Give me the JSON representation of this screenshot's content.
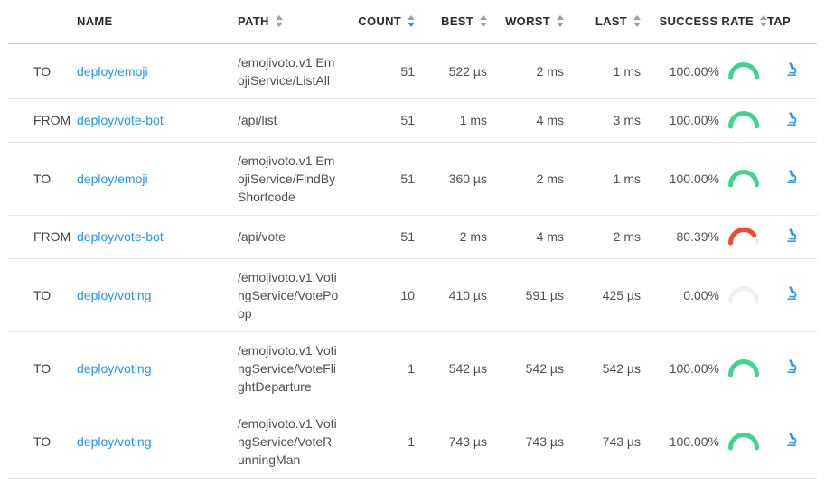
{
  "colors": {
    "link_blue": "#2196f3",
    "sort_active_blue": "#2196f3",
    "sort_inactive_gray": "#9e9e9e",
    "gauge_green": "#3dd58d",
    "gauge_red": "#ea4e2c",
    "gauge_track": "#f1f1f1",
    "header_text": "#2b2b2b",
    "body_text": "#4f4f4f",
    "divider": "#e3e3e3"
  },
  "icons": {
    "tap": "microscope-icon",
    "sort": "sort-arrows-icon"
  },
  "sort_state": {
    "active_column": "COUNT",
    "direction": "desc"
  },
  "table": {
    "columns": [
      {
        "key": "direction",
        "label": "",
        "sortable": false,
        "align": "left"
      },
      {
        "key": "name",
        "label": "NAME",
        "sortable": false,
        "align": "left"
      },
      {
        "key": "path",
        "label": "PATH",
        "sortable": true,
        "align": "left"
      },
      {
        "key": "count",
        "label": "COUNT",
        "sortable": true,
        "align": "right",
        "sorted": "desc"
      },
      {
        "key": "best",
        "label": "BEST",
        "sortable": true,
        "align": "right"
      },
      {
        "key": "worst",
        "label": "WORST",
        "sortable": true,
        "align": "right"
      },
      {
        "key": "last",
        "label": "LAST",
        "sortable": true,
        "align": "right"
      },
      {
        "key": "success_rate",
        "label": "SUCCESS RATE",
        "sortable": true,
        "align": "right"
      },
      {
        "key": "tap",
        "label": "TAP",
        "sortable": false,
        "align": "left"
      }
    ],
    "rows": [
      {
        "direction": "TO",
        "name": "deploy/emoji",
        "path": "/emojivoto.v1.EmojiService/ListAll",
        "count": "51",
        "best": "522 µs",
        "worst": "2 ms",
        "last": "1 ms",
        "success_rate": "100.00%",
        "success_value": 100,
        "gauge_color": "green"
      },
      {
        "direction": "FROM",
        "name": "deploy/vote-bot",
        "path": "/api/list",
        "count": "51",
        "best": "1 ms",
        "worst": "4 ms",
        "last": "3 ms",
        "success_rate": "100.00%",
        "success_value": 100,
        "gauge_color": "green"
      },
      {
        "direction": "TO",
        "name": "deploy/emoji",
        "path": "/emojivoto.v1.EmojiService/FindByShortcode",
        "count": "51",
        "best": "360 µs",
        "worst": "2 ms",
        "last": "1 ms",
        "success_rate": "100.00%",
        "success_value": 100,
        "gauge_color": "green"
      },
      {
        "direction": "FROM",
        "name": "deploy/vote-bot",
        "path": "/api/vote",
        "count": "51",
        "best": "2 ms",
        "worst": "4 ms",
        "last": "2 ms",
        "success_rate": "80.39%",
        "success_value": 80.39,
        "gauge_color": "red"
      },
      {
        "direction": "TO",
        "name": "deploy/voting",
        "path": "/emojivoto.v1.VotingService/VotePoop",
        "count": "10",
        "best": "410 µs",
        "worst": "591 µs",
        "last": "425 µs",
        "success_rate": "0.00%",
        "success_value": 0,
        "gauge_color": "gray"
      },
      {
        "direction": "TO",
        "name": "deploy/voting",
        "path": "/emojivoto.v1.VotingService/VoteFlightDeparture",
        "count": "1",
        "best": "542 µs",
        "worst": "542 µs",
        "last": "542 µs",
        "success_rate": "100.00%",
        "success_value": 100,
        "gauge_color": "green"
      },
      {
        "direction": "TO",
        "name": "deploy/voting",
        "path": "/emojivoto.v1.VotingService/VoteRunningMan",
        "count": "1",
        "best": "743 µs",
        "worst": "743 µs",
        "last": "743 µs",
        "success_rate": "100.00%",
        "success_value": 100,
        "gauge_color": "green"
      }
    ]
  }
}
